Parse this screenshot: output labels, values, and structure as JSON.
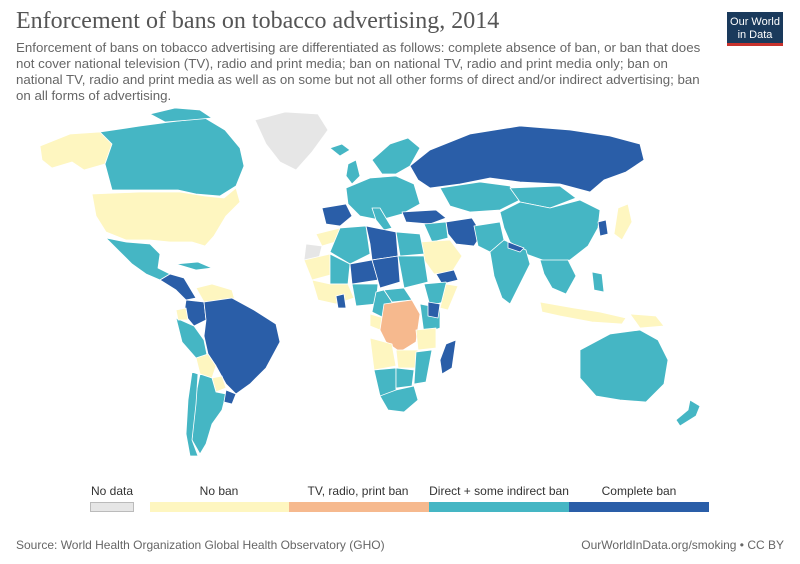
{
  "header": {
    "title": "Enforcement of bans on tobacco advertising, 2014",
    "subtitle": "Enforcement of bans on tobacco advertising are differentiated as follows: complete absence of ban, or ban that does not cover national television (TV), radio and print media; ban on national TV, radio and print media only; ban on national TV, radio and print media as well as on some but not all other forms of direct and/or indirect advertising; ban on all forms of advertising."
  },
  "logo": {
    "line1": "Our World",
    "line2": "in Data"
  },
  "colors": {
    "no_data": "#e6e6e6",
    "no_ban": "#fef6c0",
    "tv_radio_print": "#f6b98e",
    "direct_some_indirect": "#45b6c4",
    "complete": "#2a5ea8",
    "ocean": "#ffffff",
    "border": "#ffffff"
  },
  "legend": {
    "no_data": "No data",
    "categories": [
      "No ban",
      "TV, radio, print ban",
      "Direct + some indirect ban",
      "Complete ban"
    ]
  },
  "map_regions": [
    {
      "name": "Canada",
      "category": "direct_some_indirect"
    },
    {
      "name": "United States",
      "category": "no_ban"
    },
    {
      "name": "Greenland",
      "category": "no_data"
    },
    {
      "name": "Alaska",
      "category": "no_ban"
    },
    {
      "name": "Mexico",
      "category": "direct_some_indirect"
    },
    {
      "name": "Central America",
      "category": "complete"
    },
    {
      "name": "Brazil",
      "category": "complete"
    },
    {
      "name": "Argentina",
      "category": "direct_some_indirect"
    },
    {
      "name": "Chile",
      "category": "direct_some_indirect"
    },
    {
      "name": "Russia",
      "category": "complete"
    },
    {
      "name": "China",
      "category": "direct_some_indirect"
    },
    {
      "name": "India",
      "category": "direct_some_indirect"
    },
    {
      "name": "Iran",
      "category": "complete"
    },
    {
      "name": "Turkey",
      "category": "complete"
    },
    {
      "name": "Saudi Arabia",
      "category": "no_ban"
    },
    {
      "name": "Japan",
      "category": "no_ban"
    },
    {
      "name": "Indonesia",
      "category": "no_ban"
    },
    {
      "name": "Australia",
      "category": "direct_some_indirect"
    },
    {
      "name": "New Zealand",
      "category": "direct_some_indirect"
    },
    {
      "name": "DR Congo",
      "category": "tv_radio_print"
    },
    {
      "name": "Madagascar",
      "category": "complete"
    },
    {
      "name": "Libya",
      "category": "complete"
    },
    {
      "name": "Chad",
      "category": "complete"
    },
    {
      "name": "Niger",
      "category": "complete"
    },
    {
      "name": "Spain",
      "category": "complete"
    },
    {
      "name": "Zambia",
      "category": "no_ban"
    }
  ],
  "footer": {
    "source": "Source: World Health Organization Global Health Observatory (GHO)",
    "credit": "OurWorldInData.org/smoking • CC BY"
  }
}
